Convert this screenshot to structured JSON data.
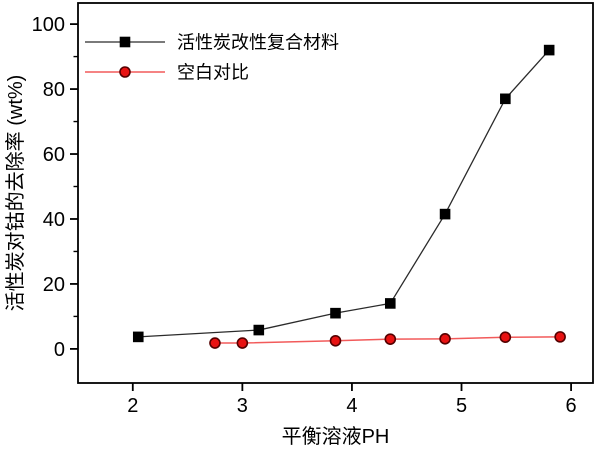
{
  "figure": {
    "background": "#ffffff",
    "border_color": "#000000"
  },
  "chart_data": {
    "type": "line",
    "title": "",
    "xlabel": "平衡溶液PH",
    "ylabel": "活性炭对钴的去除率 (wt%)",
    "xlim": [
      1.5,
      6.2
    ],
    "ylim": [
      -10.5,
      106.5
    ],
    "x_ticks": [
      2,
      3,
      4,
      5,
      6
    ],
    "y_ticks": [
      0,
      20,
      40,
      60,
      80,
      100
    ],
    "y_minor_ticks": [
      10,
      30,
      50,
      70,
      90
    ],
    "grid": false,
    "legend_position": "top-left-inside",
    "series": [
      {
        "name": "活性炭改性复合材料",
        "marker": "square",
        "line_color": "#2b2b2b",
        "marker_fill": "#000000",
        "marker_stroke": "#000000",
        "x": [
          2.05,
          3.15,
          3.85,
          4.35,
          4.85,
          5.4,
          5.8
        ],
        "y": [
          3.7,
          5.8,
          11.0,
          14.0,
          41.5,
          77.0,
          92.0
        ]
      },
      {
        "name": "空白对比",
        "marker": "circle",
        "line_color": "#f25a5a",
        "marker_fill": "#e81212",
        "marker_stroke": "#550000",
        "x": [
          2.75,
          3.0,
          3.85,
          4.35,
          4.85,
          5.4,
          5.9
        ],
        "y": [
          1.8,
          1.8,
          2.5,
          3.0,
          3.1,
          3.6,
          3.7
        ]
      }
    ]
  }
}
